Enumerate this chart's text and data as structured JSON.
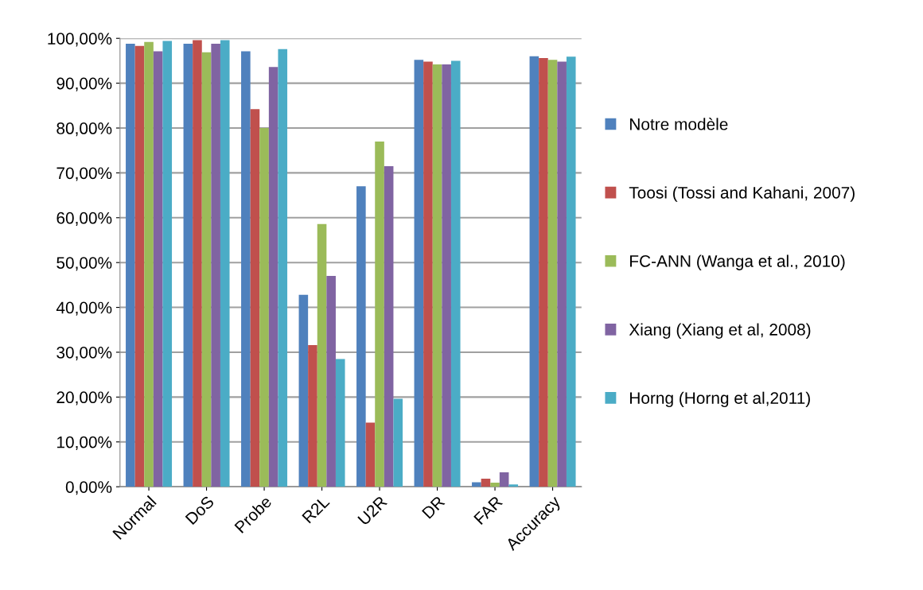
{
  "chart_data": {
    "type": "bar",
    "categories": [
      "Normal",
      "DoS",
      "Probe",
      "R2L",
      "U2R",
      "DR",
      "FAR",
      "Accuracy"
    ],
    "series": [
      {
        "name": "Notre modèle",
        "color": "#4f81bd",
        "values": [
          98.8,
          98.8,
          97.1,
          42.8,
          67.0,
          95.2,
          1.0,
          96.0
        ]
      },
      {
        "name": "Toosi (Tossi and Kahani, 2007)",
        "color": "#c0504d",
        "values": [
          98.3,
          99.6,
          84.2,
          31.6,
          14.3,
          94.8,
          1.8,
          95.6
        ]
      },
      {
        "name": "FC-ANN (Wanga et al., 2010)",
        "color": "#9bbb59",
        "values": [
          99.2,
          96.9,
          80.0,
          58.6,
          77.0,
          94.2,
          0.9,
          95.2
        ]
      },
      {
        "name": "Xiang (Xiang et al, 2008)",
        "color": "#8064a2",
        "values": [
          97.1,
          98.8,
          93.6,
          47.0,
          71.5,
          94.2,
          3.2,
          94.8
        ]
      },
      {
        "name": "Horng (Horng et al,2011)",
        "color": "#4bacc6",
        "values": [
          99.4,
          99.6,
          97.6,
          28.5,
          19.6,
          95.0,
          0.5,
          95.9
        ]
      }
    ],
    "ylim": [
      0,
      100
    ],
    "yticks": [
      {
        "value": 0,
        "label": "0,00%"
      },
      {
        "value": 10,
        "label": "10,00%"
      },
      {
        "value": 20,
        "label": "20,00%"
      },
      {
        "value": 30,
        "label": "30,00%"
      },
      {
        "value": 40,
        "label": "40,00%"
      },
      {
        "value": 50,
        "label": "50,00%"
      },
      {
        "value": 60,
        "label": "60,00%"
      },
      {
        "value": 70,
        "label": "70,00%"
      },
      {
        "value": 80,
        "label": "80,00%"
      },
      {
        "value": 90,
        "label": "90,00%"
      },
      {
        "value": 100,
        "label": "100,00%"
      }
    ],
    "grid": "y",
    "legend": "right"
  }
}
